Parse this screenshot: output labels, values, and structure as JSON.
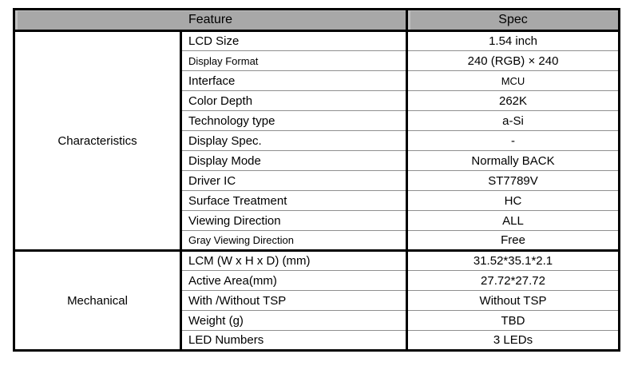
{
  "page": {
    "background": "#ffffff"
  },
  "table": {
    "header": {
      "feature_label": "Feature",
      "spec_label": "Spec",
      "header_bg": "#a8a8a8"
    },
    "colors": {
      "border_strong": "#000000",
      "border_thin": "#8f8f8f",
      "text": "#000000"
    },
    "groups": [
      {
        "name": "Characteristics",
        "rows": [
          {
            "feature": "LCD Size",
            "spec": "1.54 inch"
          },
          {
            "feature": "Display Format",
            "spec": "240 (RGB) × 240",
            "f_small": true
          },
          {
            "feature": "Interface",
            "spec": "MCU",
            "s_small": true
          },
          {
            "feature": "Color Depth",
            "spec": "262K"
          },
          {
            "feature": "Technology type",
            "spec": "a-Si"
          },
          {
            "feature": "Display Spec.",
            "spec": "-"
          },
          {
            "feature": "Display Mode",
            "spec": "Normally BACK"
          },
          {
            "feature": "Driver IC",
            "spec": "ST7789V"
          },
          {
            "feature": "Surface Treatment",
            "spec": "HC"
          },
          {
            "feature": "Viewing Direction",
            "spec": "ALL"
          },
          {
            "feature": "Gray Viewing Direction",
            "spec": "Free",
            "f_small": true
          }
        ]
      },
      {
        "name": "Mechanical",
        "rows": [
          {
            "feature": "LCM (W x H x D) (mm)",
            "spec": "31.52*35.1*2.1"
          },
          {
            "feature": "Active Area(mm)",
            "spec": "27.72*27.72"
          },
          {
            "feature": "With /Without TSP",
            "spec": "Without TSP"
          },
          {
            "feature": "Weight (g)",
            "spec": "TBD"
          },
          {
            "feature": "LED Numbers",
            "spec": "3 LEDs"
          }
        ]
      }
    ]
  }
}
